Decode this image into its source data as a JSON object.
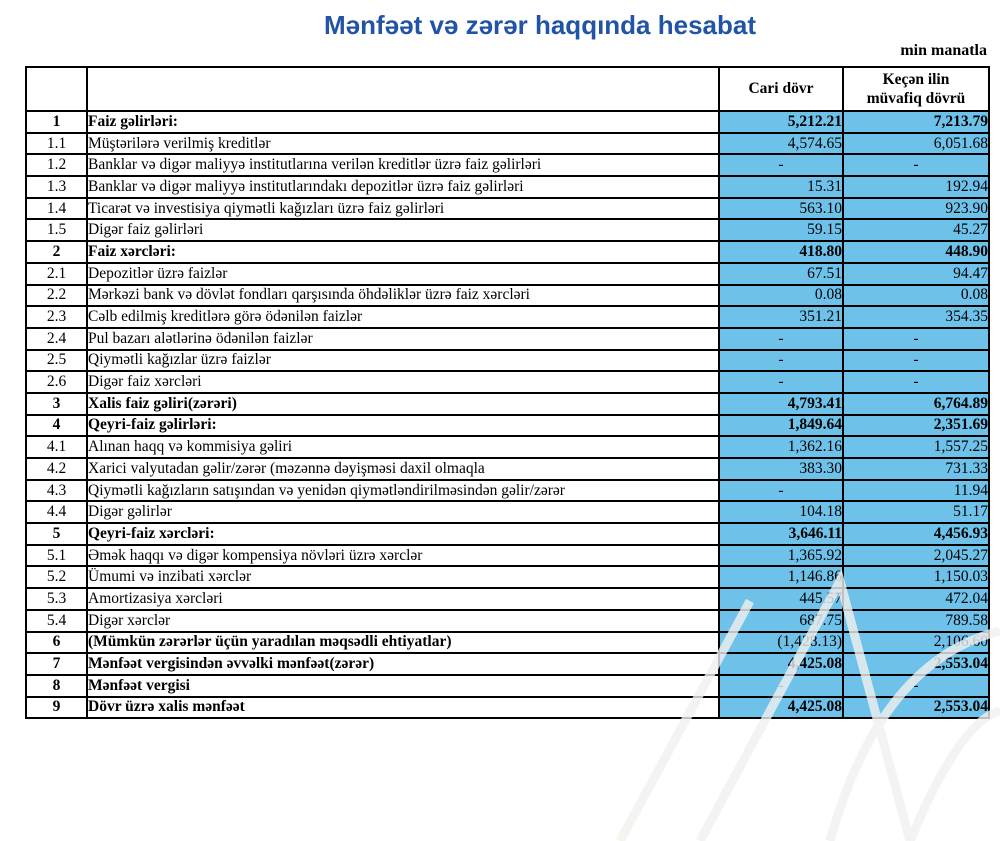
{
  "title": "Mənfəət və zərər haqqında hesabat",
  "unit_note": "min manatla",
  "colors": {
    "title_blue": "#2154a6",
    "cell_blue": "#6ec1e9",
    "border_black": "#000000"
  },
  "table": {
    "header": {
      "current": "Cari dövr",
      "previous_line1": "Keçən ilin",
      "previous_line2": "müvafiq dövrü"
    },
    "rows": [
      {
        "no": "1",
        "label": "Faiz gəlirləri:",
        "current": "5,212.21",
        "previous": "7,213.79",
        "bold": true
      },
      {
        "no": "1.1",
        "label": "Müştərilərə verilmiş kreditlər",
        "current": "4,574.65",
        "previous": "6,051.68",
        "bold": false
      },
      {
        "no": "1.2",
        "label": "Banklar və digər maliyyə institutlarına verilən kreditlər üzrə faiz gəlirləri",
        "current": "-",
        "previous": "-",
        "bold": false
      },
      {
        "no": "1.3",
        "label": "Banklar və digər maliyyə institutlarındakı depozitlər üzrə faiz gəlirləri",
        "current": "15.31",
        "previous": "192.94",
        "bold": false
      },
      {
        "no": "1.4",
        "label": "Ticarət və investisiya qiymətli kağızları üzrə faiz gəlirləri",
        "current": "563.10",
        "previous": "923.90",
        "bold": false
      },
      {
        "no": "1.5",
        "label": "Digər faiz gəlirləri",
        "current": "59.15",
        "previous": "45.27",
        "bold": false
      },
      {
        "no": "2",
        "label": "Faiz xərcləri:",
        "current": "418.80",
        "previous": "448.90",
        "bold": true
      },
      {
        "no": "2.1",
        "label": "Depozitlər üzrə faizlər",
        "current": "67.51",
        "previous": "94.47",
        "bold": false
      },
      {
        "no": "2.2",
        "label": "Mərkəzi bank və dövlət fondları qarşısında öhdəliklər üzrə faiz xərcləri",
        "current": "0.08",
        "previous": "0.08",
        "bold": false
      },
      {
        "no": "2.3",
        "label": "Cəlb edilmiş kreditlərə görə ödənilən faizlər",
        "current": "351.21",
        "previous": "354.35",
        "bold": false
      },
      {
        "no": "2.4",
        "label": "Pul bazarı alətlərinə ödənilən faizlər",
        "current": "-",
        "previous": "-",
        "bold": false
      },
      {
        "no": "2.5",
        "label": "Qiymətli kağızlar üzrə faizlər",
        "current": "-",
        "previous": "-",
        "bold": false
      },
      {
        "no": "2.6",
        "label": "Digər faiz xərcləri",
        "current": "-",
        "previous": "-",
        "bold": false
      },
      {
        "no": "3",
        "label": "Xalis faiz gəliri(zərəri)",
        "current": "4,793.41",
        "previous": "6,764.89",
        "bold": true
      },
      {
        "no": "4",
        "label": "Qeyri-faiz gəlirləri:",
        "current": "1,849.64",
        "previous": "2,351.69",
        "bold": true
      },
      {
        "no": "4.1",
        "label": "Alınan haqq və kommisiya gəliri",
        "current": "1,362.16",
        "previous": "1,557.25",
        "bold": false
      },
      {
        "no": "4.2",
        "label": "Xarici valyutadan gəlir/zərər (məzənnə dəyişməsi daxil olmaqla",
        "current": "383.30",
        "previous": "731.33",
        "bold": false
      },
      {
        "no": "4.3",
        "label": "Qiymətli kağızların satışından və yenidən qiymətləndirilməsindən gəlir/zərər",
        "current": "-",
        "previous": "11.94",
        "bold": false
      },
      {
        "no": "4.4",
        "label": "Digər gəlirlər",
        "current": "104.18",
        "previous": "51.17",
        "bold": false
      },
      {
        "no": "5",
        "label": "Qeyri-faiz xərcləri:",
        "current": "3,646.11",
        "previous": "4,456.93",
        "bold": true
      },
      {
        "no": "5.1",
        "label": "Əmək haqqı və digər kompensiya növləri üzrə xərclər",
        "current": "1,365.92",
        "previous": "2,045.27",
        "bold": false
      },
      {
        "no": "5.2",
        "label": "Ümumi və inzibati xərclər",
        "current": "1,146.86",
        "previous": "1,150.03",
        "bold": false
      },
      {
        "no": "5.3",
        "label": "Amortizasiya xərcləri",
        "current": "445.57",
        "previous": "472.04",
        "bold": false
      },
      {
        "no": "5.4",
        "label": "Digər xərclər",
        "current": "687.75",
        "previous": "789.58",
        "bold": false
      },
      {
        "no": "6",
        "label": "(Mümkün zərərlər üçün yaradılan məqsədli ehtiyatlar)",
        "current": "(1,428.13)",
        "previous": "2,106.60",
        "bold": true,
        "value_bold": false
      },
      {
        "no": "7",
        "label": "Mənfəət vergisindən əvvəlki mənfəət(zərər)",
        "current": "4,425.08",
        "previous": "2,553.04",
        "bold": true
      },
      {
        "no": "8",
        "label": "Mənfəət vergisi",
        "current": "-",
        "previous": "-",
        "bold": true,
        "value_bold": false
      },
      {
        "no": "9",
        "label": "Dövr üzrə xalis mənfəət",
        "current": "4,425.08",
        "previous": "2,553.04",
        "bold": true
      }
    ]
  }
}
